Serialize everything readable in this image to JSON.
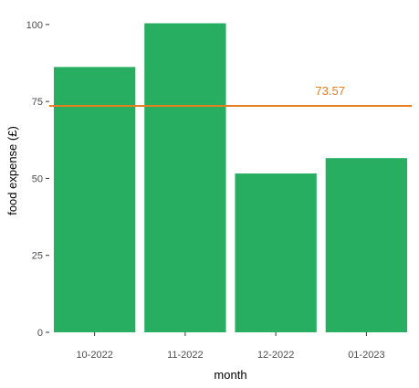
{
  "chart_data": {
    "type": "bar",
    "categories": [
      "10-2022",
      "11-2022",
      "12-2022",
      "01-2023"
    ],
    "values": [
      86.2,
      100.4,
      51.6,
      56.6
    ],
    "xlabel": "month",
    "ylabel": "food expense (£)",
    "ylim": [
      0,
      105
    ],
    "yticks": [
      0,
      25,
      50,
      75,
      100
    ],
    "grid": false,
    "reference_line": {
      "value": 73.57,
      "label": "73.57"
    },
    "colors": {
      "bar": "#27ae60",
      "reference_line": "#e67e22",
      "reference_label": "#e67e22"
    }
  }
}
